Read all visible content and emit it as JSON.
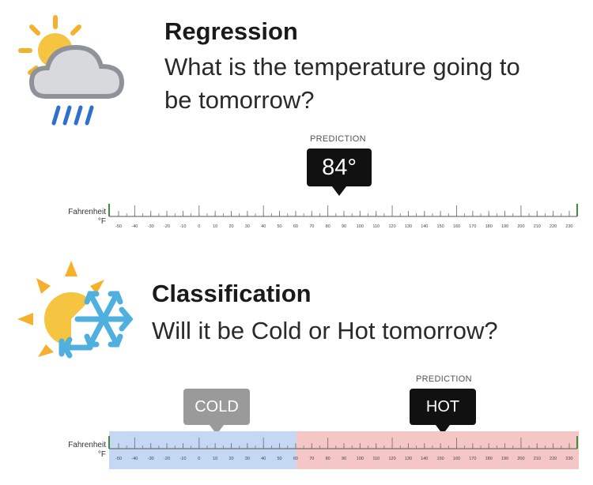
{
  "regression": {
    "title": "Regression",
    "question_line1": "What is the temperature going to",
    "question_line2": "be tomorrow?",
    "prediction_label": "PREDICTION",
    "prediction_value": "84°",
    "scale_name": "Fahrenheit",
    "scale_unit": "°F"
  },
  "classification": {
    "title": "Classification",
    "question": "Will it be Cold or Hot tomorrow?",
    "prediction_label": "PREDICTION",
    "cold_label": "COLD",
    "hot_label": "HOT",
    "scale_name": "Fahrenheit",
    "scale_unit": "°F"
  },
  "scale_ticks": [
    "-50",
    "-40",
    "-30",
    "-20",
    "-10",
    "0",
    "10",
    "20",
    "30",
    "40",
    "50",
    "60",
    "70",
    "80",
    "90",
    "100",
    "110",
    "120",
    "130",
    "140",
    "150",
    "160",
    "170",
    "180",
    "190",
    "200",
    "210",
    "220",
    "230"
  ],
  "colors": {
    "cold_band": "#c5d8f3",
    "hot_band": "#f4c6c6",
    "axis_green": "#3f8f3a"
  },
  "icons": [
    "sun-cloud-rain-icon",
    "sun-snowflake-icon"
  ]
}
